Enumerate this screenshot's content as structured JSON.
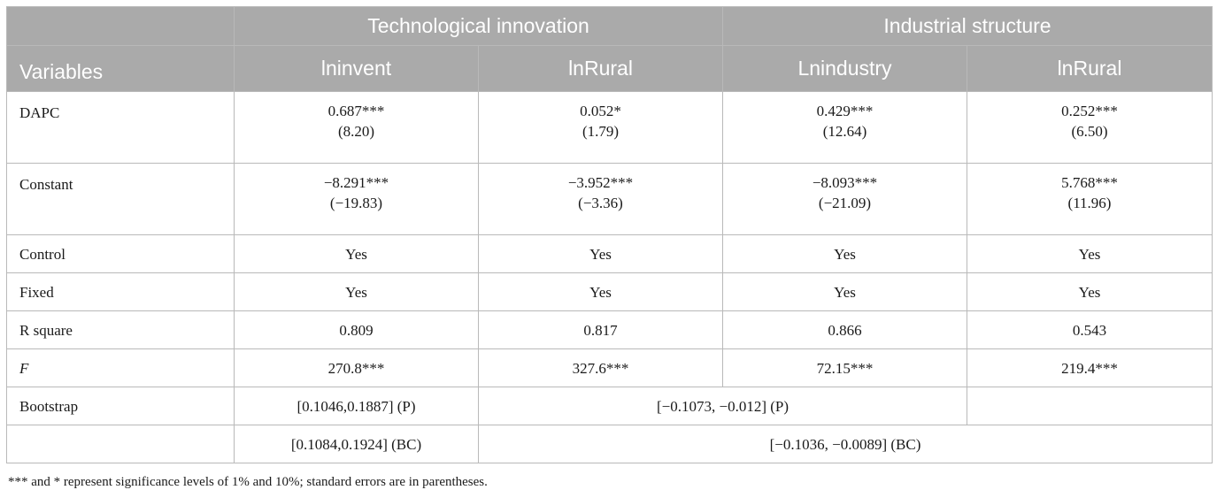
{
  "header": {
    "group1": "Technological innovation",
    "group2": "Industrial structure",
    "variables": "Variables",
    "col1": "lninvent",
    "col2": "lnRural",
    "col3": "Lnindustry",
    "col4": "lnRural"
  },
  "rows": {
    "dapc": {
      "label": "DAPC",
      "c1": "0.687***",
      "c1se": "(8.20)",
      "c2": "0.052*",
      "c2se": "(1.79)",
      "c3": "0.429***",
      "c3se": "(12.64)",
      "c4": "0.252***",
      "c4se": "(6.50)"
    },
    "constant": {
      "label": "Constant",
      "c1": "−8.291***",
      "c1se": "(−19.83)",
      "c2": "−3.952***",
      "c2se": "(−3.36)",
      "c3": "−8.093***",
      "c3se": "(−21.09)",
      "c4": "5.768***",
      "c4se": "(11.96)"
    },
    "control": {
      "label": "Control",
      "c1": "Yes",
      "c2": "Yes",
      "c3": "Yes",
      "c4": "Yes"
    },
    "fixed": {
      "label": "Fixed",
      "c1": "Yes",
      "c2": "Yes",
      "c3": "Yes",
      "c4": "Yes"
    },
    "rsquare": {
      "label": "R square",
      "c1": "0.809",
      "c2": "0.817",
      "c3": "0.866",
      "c4": "0.543"
    },
    "f": {
      "label": "F",
      "c1": "270.8***",
      "c2": "327.6***",
      "c3": "72.15***",
      "c4": "219.4***"
    },
    "bootstrap1": {
      "label": "Bootstrap",
      "c1": "[0.1046,0.1887] (P)",
      "c23": "[−0.1073, −0.012] (P)",
      "c4": ""
    },
    "bootstrap2": {
      "label": "",
      "c1": "[0.1084,0.1924] (BC)",
      "c234": "[−0.1036, −0.0089] (BC)"
    }
  },
  "footnote": "*** and * represent significance levels of 1% and 10%; standard errors are in parentheses."
}
